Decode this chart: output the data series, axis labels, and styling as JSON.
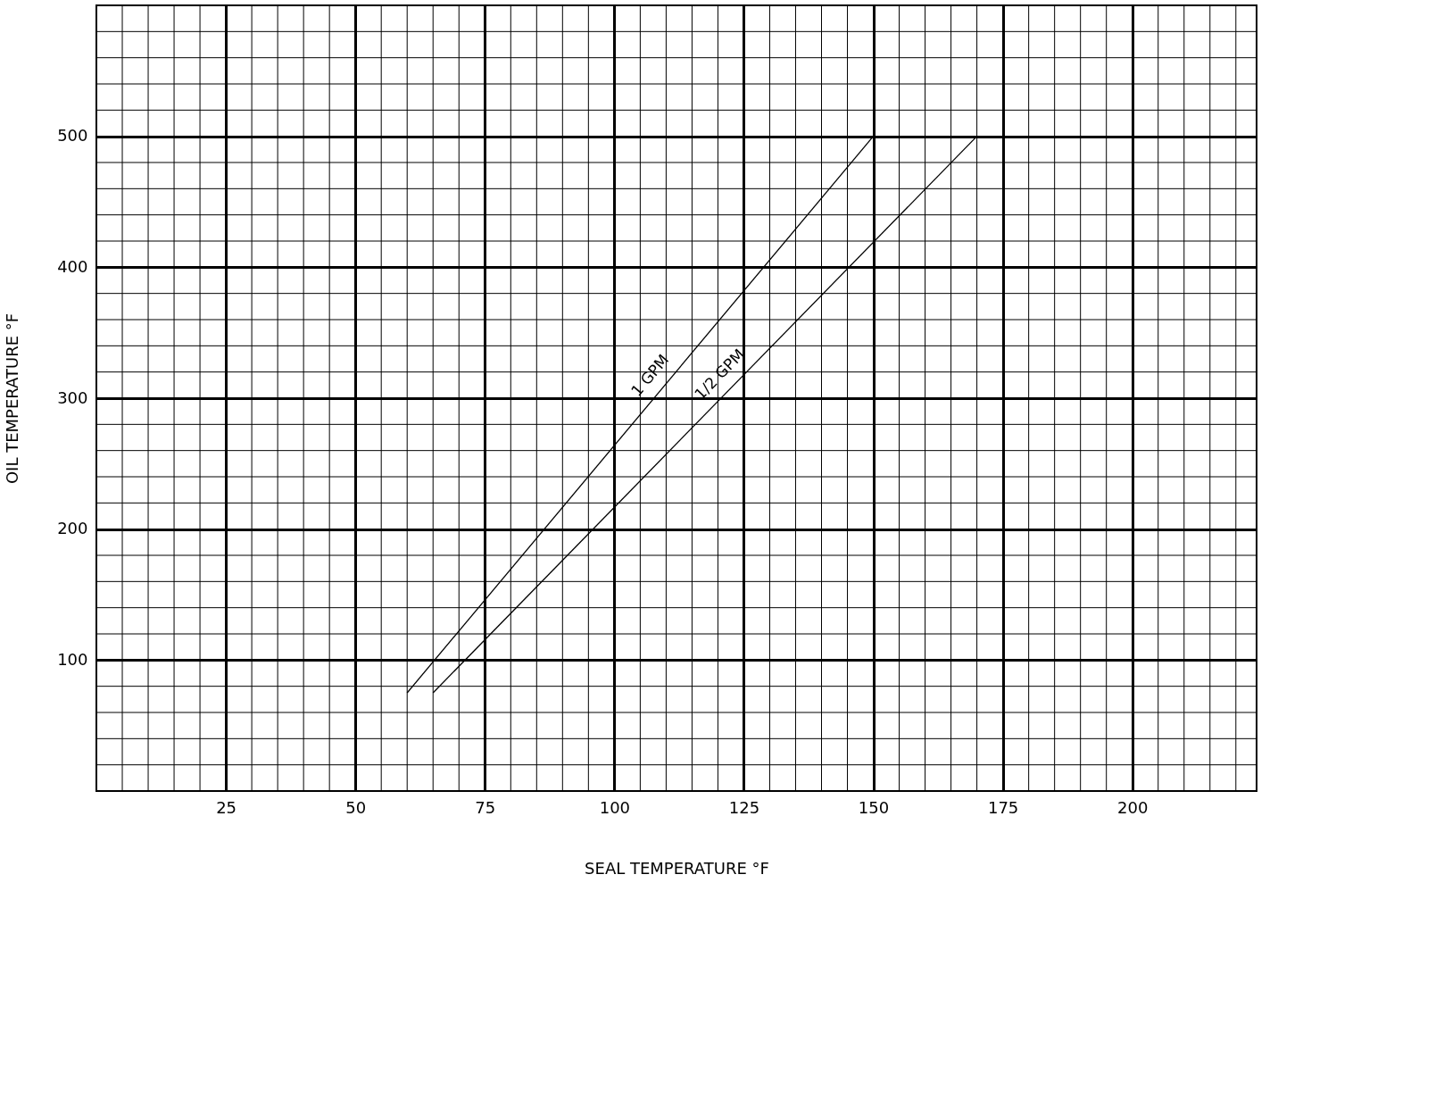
{
  "chart_data": {
    "type": "line",
    "xlabel": "SEAL TEMPERATURE °F",
    "ylabel": "OIL TEMPERATURE °F",
    "xlim": [
      0,
      224
    ],
    "xticks": [
      25,
      50,
      75,
      100,
      125,
      150,
      175,
      200
    ],
    "ylim": [
      0,
      600
    ],
    "yticks": [
      100,
      200,
      300,
      400,
      500
    ],
    "grid": true,
    "marker": "none",
    "line_style": "solid",
    "series": [
      {
        "name": "1 GPM",
        "color": "#000000",
        "x": [
          60,
          150
        ],
        "values": [
          75,
          500
        ]
      },
      {
        "name": "1/2 GPM",
        "color": "#000000",
        "x": [
          65,
          170
        ],
        "values": [
          75,
          500
        ]
      }
    ]
  }
}
